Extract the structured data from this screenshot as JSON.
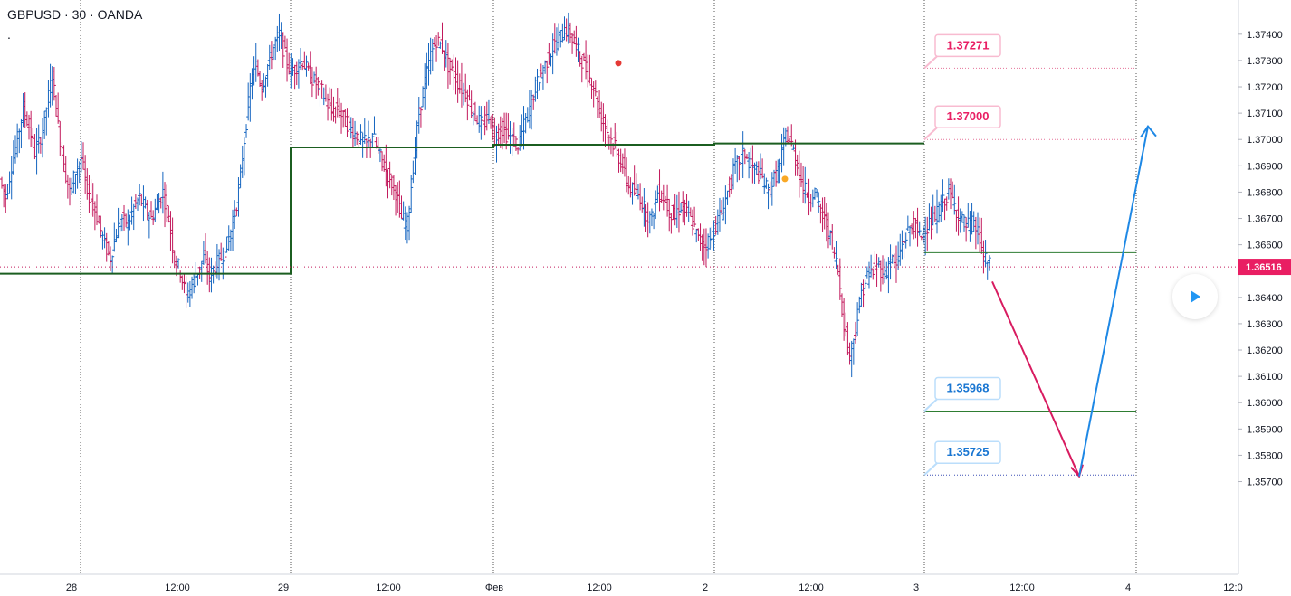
{
  "header": {
    "symbol": "GBPUSD · 30 · OANDA",
    "indicator_dot": "."
  },
  "chart_data": {
    "type": "ohlc",
    "symbol": "GBPUSD",
    "interval": "30",
    "source": "OANDA",
    "ylim": [
      1.3565,
      1.3748
    ],
    "y_ticks": [
      "1.37400",
      "1.37300",
      "1.37200",
      "1.37100",
      "1.37000",
      "1.36900",
      "1.36800",
      "1.36700",
      "1.36600",
      "1.36400",
      "1.36300",
      "1.36200",
      "1.36100",
      "1.36000",
      "1.35900",
      "1.35800",
      "1.35700"
    ],
    "x_ticks": [
      "28",
      "12:00",
      "29",
      "12:00",
      "Фев",
      "12:00",
      "2",
      "12:00",
      "3",
      "12:00",
      "4",
      "12:0"
    ],
    "current_price": "1.36516",
    "price_path": [
      1.3685,
      1.3678,
      1.369,
      1.37,
      1.3712,
      1.3705,
      1.3695,
      1.37,
      1.3712,
      1.3725,
      1.3705,
      1.369,
      1.368,
      1.3688,
      1.3693,
      1.368,
      1.3676,
      1.3668,
      1.366,
      1.3655,
      1.3665,
      1.367,
      1.3668,
      1.3674,
      1.3678,
      1.3673,
      1.367,
      1.3675,
      1.368,
      1.367,
      1.3655,
      1.365,
      1.364,
      1.3645,
      1.365,
      1.3655,
      1.3648,
      1.3652,
      1.3655,
      1.366,
      1.3668,
      1.368,
      1.37,
      1.372,
      1.3728,
      1.372,
      1.3728,
      1.3735,
      1.374,
      1.3732,
      1.3725,
      1.3728,
      1.373,
      1.3725,
      1.3722,
      1.372,
      1.3715,
      1.371,
      1.3712,
      1.3708,
      1.3705,
      1.3702,
      1.37,
      1.3698,
      1.3702,
      1.3695,
      1.369,
      1.3685,
      1.368,
      1.367,
      1.3668,
      1.369,
      1.371,
      1.3722,
      1.3732,
      1.3738,
      1.3735,
      1.3728,
      1.3725,
      1.372,
      1.3718,
      1.3712,
      1.3708,
      1.3705,
      1.371,
      1.37,
      1.3705,
      1.3702,
      1.37,
      1.3698,
      1.3705,
      1.3712,
      1.372,
      1.3725,
      1.373,
      1.3735,
      1.3738,
      1.3742,
      1.374,
      1.3735,
      1.373,
      1.3725,
      1.372,
      1.371,
      1.3705,
      1.37,
      1.3695,
      1.369,
      1.3682,
      1.368,
      1.3678,
      1.3672,
      1.367,
      1.368,
      1.3678,
      1.3673,
      1.367,
      1.3675,
      1.3672,
      1.3668,
      1.3662,
      1.366,
      1.3662,
      1.3668,
      1.3672,
      1.368,
      1.3688,
      1.3692,
      1.3695,
      1.369,
      1.3688,
      1.3685,
      1.368,
      1.3685,
      1.369,
      1.3702,
      1.3698,
      1.369,
      1.3682,
      1.3678,
      1.368,
      1.3672,
      1.3668,
      1.366,
      1.365,
      1.363,
      1.3618,
      1.3628,
      1.3642,
      1.3648,
      1.365,
      1.3652,
      1.3648,
      1.3655,
      1.3652,
      1.366,
      1.3665,
      1.3668,
      1.3663,
      1.3667,
      1.3668,
      1.3672,
      1.3676,
      1.368,
      1.3675,
      1.367,
      1.3667,
      1.3668,
      1.3665,
      1.3655,
      1.3652
    ],
    "levels": [
      {
        "label": "1.37271",
        "value": 1.37271,
        "color": "#e91e63",
        "style": "dotted"
      },
      {
        "label": "1.37000",
        "value": 1.37,
        "color": "#e91e63",
        "style": "dotted"
      },
      {
        "label": "1.35968",
        "value": 1.35968,
        "color": "#2962ff",
        "style": "solid"
      },
      {
        "label": "1.35725",
        "value": 1.35725,
        "color": "#2962ff",
        "style": "dotted"
      }
    ],
    "pivot_line": [
      1.3649,
      1.3697,
      1.3698,
      1.36985
    ],
    "green_level": 1.3657,
    "markers": [
      {
        "value": 1.3729,
        "color": "#e53935"
      },
      {
        "value": 1.3685,
        "color": "#f9a825"
      }
    ],
    "projection": {
      "down_to": 1.3572,
      "up_to": 1.3705
    },
    "colors": {
      "up": "#1565c0",
      "down": "#c2185b",
      "pivot": "#1b5e20",
      "level_green": "#2e7d32",
      "label_pink": "#e91e63",
      "label_blue": "#1976d2"
    }
  }
}
